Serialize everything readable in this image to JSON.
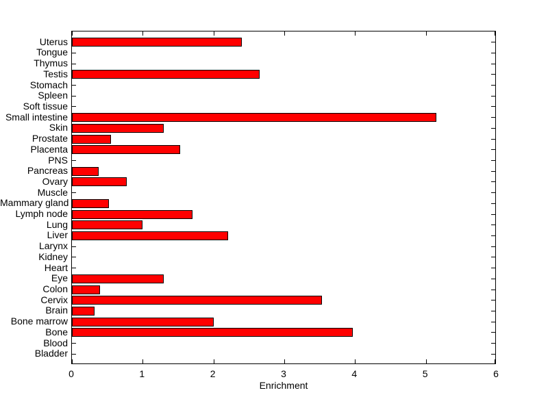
{
  "chart_data": {
    "type": "bar",
    "orientation": "horizontal",
    "title": "",
    "xlabel": "Enrichment",
    "ylabel": "",
    "xlim": [
      0,
      6
    ],
    "xticks": [
      "0",
      "1",
      "2",
      "3",
      "4",
      "5",
      "6"
    ],
    "grid": false,
    "legend": "none",
    "categories": [
      "Uterus",
      "Tongue",
      "Thymus",
      "Testis",
      "Stomach",
      "Spleen",
      "Soft tissue",
      "Small intestine",
      "Skin",
      "Prostate",
      "Placenta",
      "PNS",
      "Pancreas",
      "Ovary",
      "Muscle",
      "Mammary gland",
      "Lymph node",
      "Lung",
      "Liver",
      "Larynx",
      "Kidney",
      "Heart",
      "Eye",
      "Colon",
      "Cervix",
      "Brain",
      "Bone marrow",
      "Bone",
      "Blood",
      "Bladder"
    ],
    "values": [
      2.4,
      0,
      0,
      2.65,
      0,
      0,
      0,
      5.15,
      1.3,
      0.55,
      1.53,
      0,
      0.38,
      0.77,
      0,
      0.52,
      1.7,
      1.0,
      2.21,
      0,
      0,
      0,
      1.3,
      0.4,
      3.53,
      0.32,
      2.0,
      3.97,
      0,
      0
    ],
    "colors": {
      "bar_fill": "#FF0000",
      "bar_edge": "#000000",
      "axis": "#000000",
      "text": "#000000",
      "background": "#FFFFFF"
    }
  }
}
